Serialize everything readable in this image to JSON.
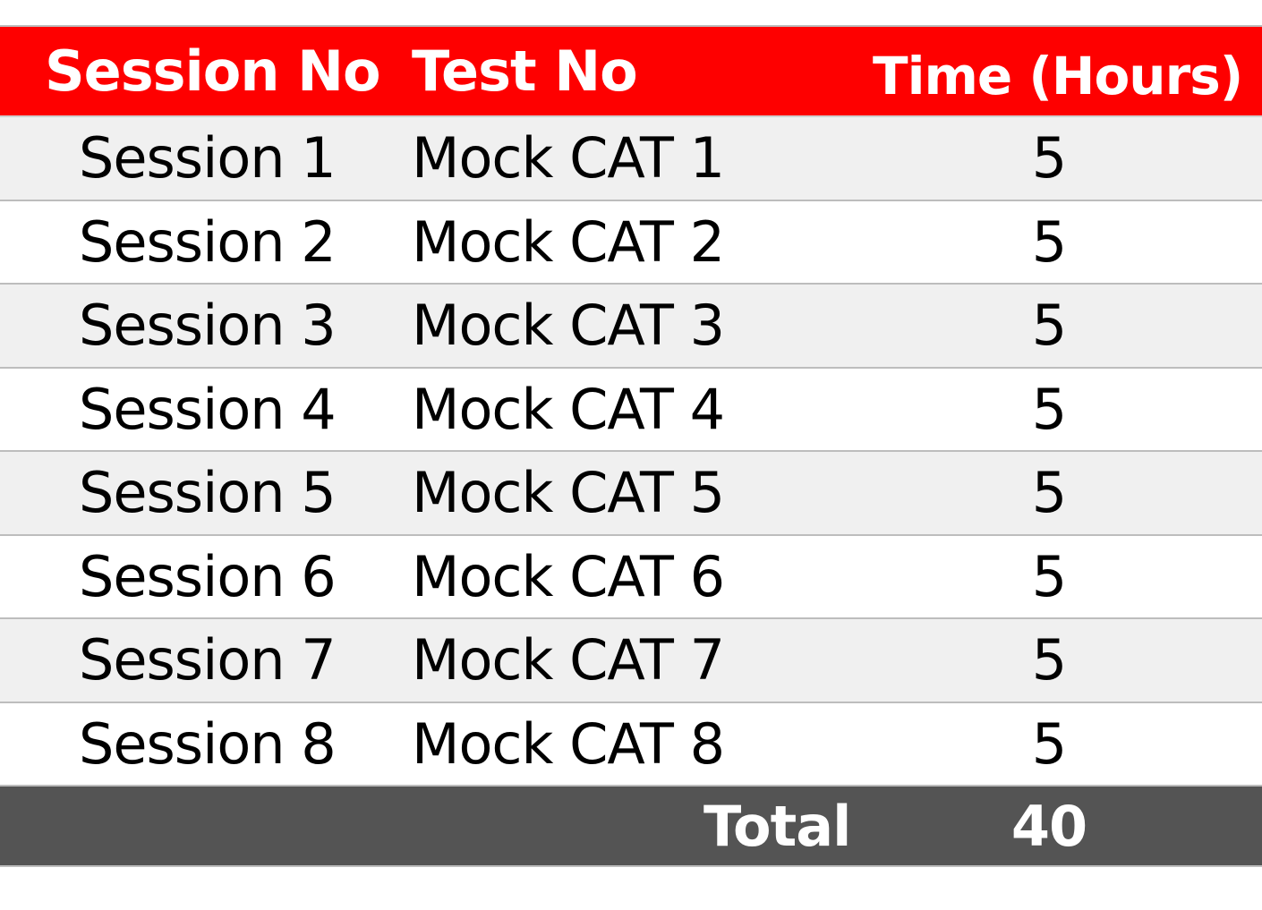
{
  "header": {
    "session_col": "Session No",
    "test_col": "Test No",
    "time_col": "Time (Hours)"
  },
  "rows": [
    {
      "session": "Session 1",
      "test": "Mock CAT 1",
      "time": "5"
    },
    {
      "session": "Session 2",
      "test": "Mock CAT 2",
      "time": "5"
    },
    {
      "session": "Session 3",
      "test": "Mock CAT 3",
      "time": "5"
    },
    {
      "session": "Session 4",
      "test": "Mock CAT 4",
      "time": "5"
    },
    {
      "session": "Session 5",
      "test": "Mock CAT 5",
      "time": "5"
    },
    {
      "session": "Session 6",
      "test": "Mock CAT 6",
      "time": "5"
    },
    {
      "session": "Session 7",
      "test": "Mock CAT 7",
      "time": "5"
    },
    {
      "session": "Session 8",
      "test": "Mock CAT 8",
      "time": "5"
    }
  ],
  "total": {
    "label": "Total",
    "value": "40"
  },
  "colors": {
    "header_bg": "#fe0000",
    "total_bg": "#545454",
    "stripe_bg": "#f0f0f0"
  }
}
